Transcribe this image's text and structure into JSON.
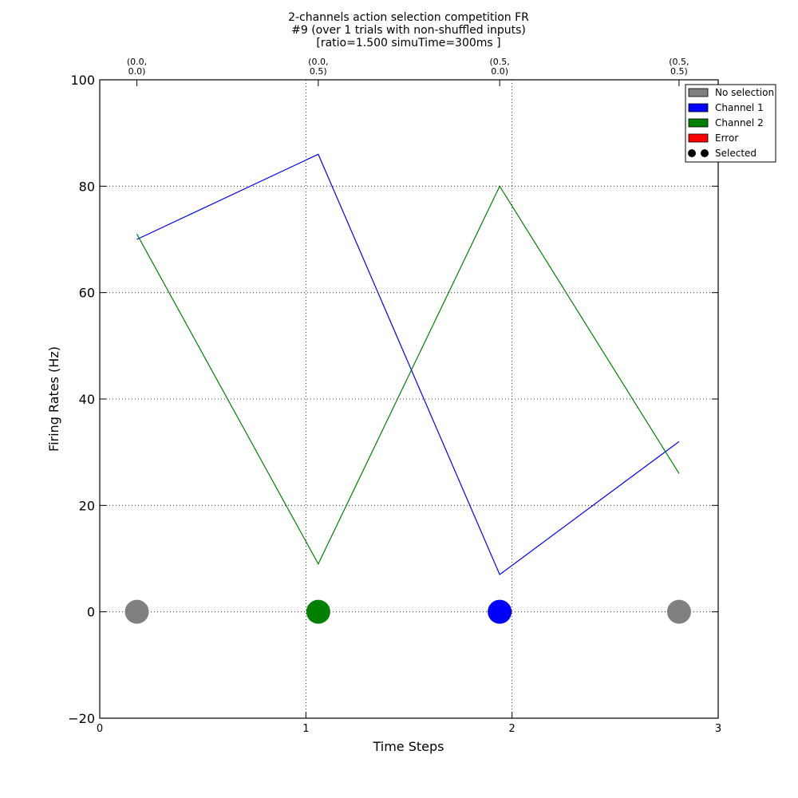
{
  "chart_data": {
    "type": "line",
    "title_lines": [
      "2-channels action selection competition FR",
      "#9 (over 1 trials with non-shuffled inputs)",
      "[ratio=1.500 simuTime=300ms ]"
    ],
    "xlabel": "Time Steps",
    "ylabel": "Firing Rates (Hz)",
    "xlim": [
      0,
      3
    ],
    "ylim": [
      -20,
      100
    ],
    "xticks": [
      0,
      1,
      2,
      3
    ],
    "yticks": [
      -20,
      0,
      20,
      40,
      60,
      80,
      100
    ],
    "ytick_labels": [
      "−20",
      "0",
      "20",
      "40",
      "60",
      "80",
      "100"
    ],
    "xtick_labels": [
      "0",
      "1",
      "2",
      "3"
    ],
    "top_ticks": [
      {
        "x": 0.18,
        "line1": "(0.0,",
        "line2": "0.0)"
      },
      {
        "x": 1.06,
        "line1": "(0.0,",
        "line2": "0.5)"
      },
      {
        "x": 1.94,
        "line1": "(0.5,",
        "line2": "0.0)"
      },
      {
        "x": 2.81,
        "line1": "(0.5,",
        "line2": "0.5)"
      }
    ],
    "grid": true,
    "legend_position": "top-right",
    "series": [
      {
        "name": "Channel 1",
        "color": "#0000ff",
        "x": [
          0.18,
          1.06,
          1.94,
          2.81
        ],
        "y": [
          70,
          86,
          7,
          32
        ]
      },
      {
        "name": "Channel 2",
        "color": "#008000",
        "x": [
          0.18,
          1.06,
          1.94,
          2.81
        ],
        "y": [
          71,
          9,
          80,
          26
        ]
      }
    ],
    "selection_markers": [
      {
        "x": 0.18,
        "y": 0,
        "color": "#808080",
        "category": "No selection"
      },
      {
        "x": 1.06,
        "y": 0,
        "color": "#008000",
        "category": "Channel 2"
      },
      {
        "x": 1.94,
        "y": 0,
        "color": "#0000ff",
        "category": "Channel 1"
      },
      {
        "x": 2.81,
        "y": 0,
        "color": "#808080",
        "category": "No selection"
      }
    ],
    "legend": [
      {
        "label": "No selection",
        "color": "#808080",
        "kind": "patch"
      },
      {
        "label": "Channel 1",
        "color": "#0000ff",
        "kind": "patch"
      },
      {
        "label": "Channel 2",
        "color": "#008000",
        "kind": "patch"
      },
      {
        "label": "Error",
        "color": "#ff0000",
        "kind": "patch"
      },
      {
        "label": "Selected",
        "color": "#000000",
        "kind": "dots"
      }
    ]
  }
}
